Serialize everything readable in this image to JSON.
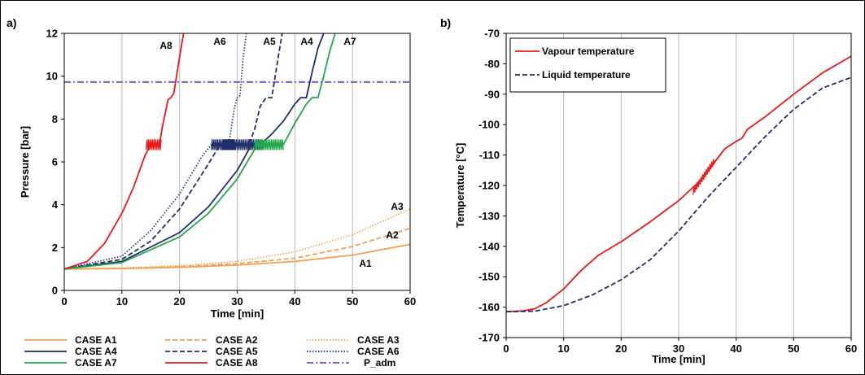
{
  "chart_data": [
    {
      "panel": "a)",
      "type": "line",
      "xlabel": "Time [min]",
      "ylabel": "Pressure [bar]",
      "xlim": [
        0,
        60
      ],
      "ylim": [
        0,
        12
      ],
      "xticks": [
        0,
        10,
        20,
        30,
        40,
        50,
        60
      ],
      "yticks": [
        0,
        2,
        4,
        6,
        8,
        10,
        12
      ],
      "grid": "vertical",
      "legend_position": "bottom",
      "series": [
        {
          "name": "CASE A1",
          "label": "A1",
          "color": "#F5A050",
          "dash": "solid",
          "x": [
            0,
            10,
            20,
            30,
            40,
            50,
            60
          ],
          "y": [
            1.0,
            1.02,
            1.08,
            1.18,
            1.35,
            1.65,
            2.15
          ]
        },
        {
          "name": "CASE A2",
          "label": "A2",
          "color": "#F5A050",
          "dash": "dash",
          "x": [
            0,
            10,
            20,
            30,
            40,
            50,
            60
          ],
          "y": [
            1.0,
            1.03,
            1.1,
            1.25,
            1.5,
            2.05,
            2.9
          ]
        },
        {
          "name": "CASE A3",
          "label": "A3",
          "color": "#F5A050",
          "dash": "dot",
          "x": [
            0,
            10,
            20,
            30,
            40,
            50,
            60
          ],
          "y": [
            1.0,
            1.05,
            1.15,
            1.35,
            1.8,
            2.6,
            3.8
          ]
        },
        {
          "name": "CASE A4",
          "label": "A4",
          "color": "#1F2F6B",
          "dash": "solid",
          "x": [
            0,
            10,
            20,
            25,
            30,
            32.5,
            34,
            36,
            38,
            40,
            41,
            42,
            43,
            44,
            45
          ],
          "y": [
            1.0,
            1.35,
            2.7,
            3.9,
            5.6,
            6.8,
            6.8,
            7.3,
            7.9,
            8.7,
            9.0,
            9.0,
            10.2,
            11.3,
            12.0
          ]
        },
        {
          "name": "CASE A5",
          "label": "A5",
          "color": "#1F2F6B",
          "dash": "dash",
          "x": [
            0,
            10,
            15,
            20,
            25,
            27,
            32,
            33,
            34,
            35,
            36,
            37,
            37.8
          ],
          "y": [
            1.0,
            1.45,
            2.3,
            3.8,
            5.9,
            6.8,
            6.8,
            7.5,
            8.6,
            9.0,
            9.0,
            10.7,
            12.0
          ]
        },
        {
          "name": "CASE A6",
          "label": "A6",
          "color": "#1F2F6B",
          "dash": "dot",
          "x": [
            0,
            10,
            15,
            20,
            24,
            25.5,
            28.5,
            29.5,
            30,
            30.5,
            31,
            31.6
          ],
          "y": [
            1.0,
            1.6,
            2.8,
            4.5,
            6.3,
            6.8,
            6.8,
            8.5,
            9.0,
            9.1,
            10.8,
            12.0
          ]
        },
        {
          "name": "CASE A7",
          "label": "A7",
          "color": "#22A84A",
          "dash": "solid",
          "x": [
            0,
            10,
            20,
            25,
            30,
            33.5,
            38,
            40,
            42,
            43,
            44,
            45,
            46,
            47
          ],
          "y": [
            1.0,
            1.3,
            2.5,
            3.6,
            5.2,
            6.8,
            6.8,
            7.8,
            8.7,
            9.0,
            9.0,
            10.0,
            11.1,
            12.0
          ]
        },
        {
          "name": "CASE A8",
          "label": "A8",
          "color": "#E8191C",
          "dash": "solid",
          "x": [
            0,
            4,
            7,
            10,
            12,
            14,
            15,
            16.5,
            17,
            18,
            18.5,
            19,
            20,
            20.7
          ],
          "y": [
            1.0,
            1.35,
            2.2,
            3.6,
            4.8,
            6.3,
            6.8,
            6.8,
            7.6,
            8.9,
            9.0,
            9.2,
            10.9,
            12.0
          ]
        },
        {
          "name": "P_adm",
          "color": "#7A4FBE",
          "dash": "dashdot",
          "x": [
            0,
            60
          ],
          "y": [
            9.73,
            9.73
          ]
        }
      ],
      "oscillations": [
        {
          "series": "CASE A8",
          "x": [
            14.2,
            16.8
          ],
          "y": [
            6.55,
            7.05
          ]
        },
        {
          "series": "CASE A6",
          "x": [
            25.5,
            29.5
          ],
          "y": [
            6.55,
            7.05
          ]
        },
        {
          "series": "CASE A5",
          "x": [
            27.5,
            32.0
          ],
          "y": [
            6.55,
            7.05
          ]
        },
        {
          "series": "CASE A4",
          "x": [
            32.0,
            34.5
          ],
          "y": [
            6.55,
            7.05
          ]
        },
        {
          "series": "CASE A7",
          "x": [
            33.0,
            38.0
          ],
          "y": [
            6.55,
            7.05
          ]
        }
      ]
    },
    {
      "panel": "b)",
      "type": "line",
      "xlabel": "Time [min]",
      "ylabel": "Temperature [°C]",
      "xlim": [
        0,
        60
      ],
      "ylim": [
        -170,
        -70
      ],
      "xticks": [
        0,
        10,
        20,
        30,
        40,
        50,
        60
      ],
      "yticks": [
        -170,
        -160,
        -150,
        -140,
        -130,
        -120,
        -110,
        -100,
        -90,
        -80,
        -70
      ],
      "grid": "vertical",
      "legend_position": "top-left",
      "series": [
        {
          "name": "Vapour temperature",
          "color": "#E8191C",
          "dash": "solid",
          "x": [
            0,
            3,
            5,
            7,
            10,
            13,
            16,
            20,
            25,
            30,
            32,
            34,
            36,
            38,
            40,
            41,
            42,
            45,
            50,
            55,
            60
          ],
          "y": [
            -161.5,
            -161.2,
            -160.5,
            -158.5,
            -154,
            -148,
            -143,
            -138.5,
            -132,
            -125,
            -121.5,
            -118,
            -113,
            -108,
            -105.5,
            -104.5,
            -101.5,
            -97.5,
            -90,
            -83,
            -77.5
          ]
        },
        {
          "name": "Liquid temperature",
          "color": "#1F2F6B",
          "dash": "dash",
          "x": [
            0,
            5,
            10,
            15,
            20,
            25,
            30,
            35,
            40,
            45,
            50,
            55,
            60
          ],
          "y": [
            -161.5,
            -161.3,
            -159.5,
            -156,
            -151,
            -144.5,
            -135,
            -124,
            -114,
            -104,
            -95,
            -88,
            -84.5
          ]
        }
      ],
      "oscillations": [
        {
          "series": "Vapour temperature",
          "x": [
            32.5,
            36.2
          ],
          "y": [
            -122,
            -112
          ]
        }
      ]
    }
  ]
}
